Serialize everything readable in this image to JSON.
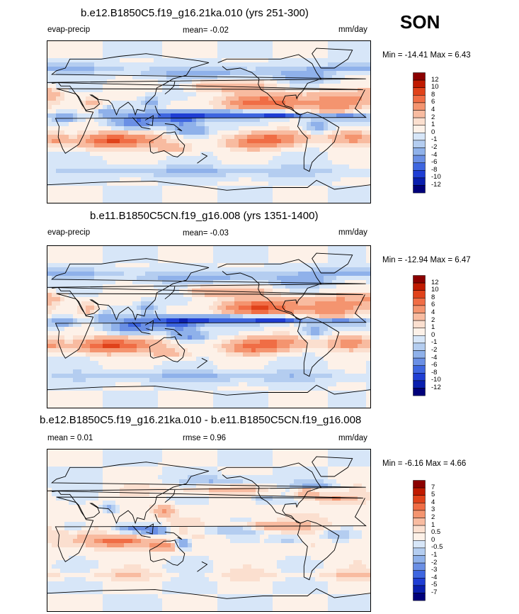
{
  "season": "SON",
  "chart_data": [
    {
      "type": "heatmap",
      "title": "b.e12.B1850C5.f19_g16.21ka.010 (yrs 251-300)",
      "variable": "evap-precip",
      "mean_label": "mean=  -0.02",
      "units": "mm/day",
      "minmax_label": "Min = -14.41 Max =   6.43",
      "min": -14.41,
      "max": 6.43,
      "mean": -0.02,
      "levels": [
        "12",
        "10",
        "8",
        "6",
        "4",
        "2",
        "1",
        "0",
        "-1",
        "-2",
        "-4",
        "-6",
        "-8",
        "-10",
        "-12"
      ],
      "colors": [
        "#8b0000",
        "#c01a00",
        "#e0421a",
        "#f06d45",
        "#f4946f",
        "#f8bba0",
        "#fbdfcf",
        "#fdf1e8",
        "#d7e6f8",
        "#b4cdf0",
        "#8fb1ea",
        "#6a8fe5",
        "#3e66e0",
        "#1f3ed4",
        "#0a1fae",
        "#00007a"
      ]
    },
    {
      "type": "heatmap",
      "title": "b.e11.B1850C5CN.f19_g16.008 (yrs 1351-1400)",
      "variable": "evap-precip",
      "mean_label": "mean=  -0.03",
      "units": "mm/day",
      "minmax_label": "Min = -12.94 Max =   6.47",
      "min": -12.94,
      "max": 6.47,
      "mean": -0.03,
      "levels": [
        "12",
        "10",
        "8",
        "6",
        "4",
        "2",
        "1",
        "0",
        "-1",
        "-2",
        "-4",
        "-6",
        "-8",
        "-10",
        "-12"
      ],
      "colors": [
        "#8b0000",
        "#c01a00",
        "#e0421a",
        "#f06d45",
        "#f4946f",
        "#f8bba0",
        "#fbdfcf",
        "#fdf1e8",
        "#d7e6f8",
        "#b4cdf0",
        "#8fb1ea",
        "#6a8fe5",
        "#3e66e0",
        "#1f3ed4",
        "#0a1fae",
        "#00007a"
      ]
    },
    {
      "type": "heatmap",
      "title": "b.e12.B1850C5.f19_g16.21ka.010 - b.e11.B1850C5CN.f19_g16.008",
      "mean_label": "mean =   0.01",
      "rmse_label": "rmse =   0.96",
      "units": "mm/day",
      "minmax_label": "Min =  -6.16 Max =   4.66",
      "min": -6.16,
      "max": 4.66,
      "mean": 0.01,
      "rmse": 0.96,
      "levels": [
        "7",
        "5",
        "4",
        "3",
        "2",
        "1",
        "0.5",
        "0",
        "-0.5",
        "-1",
        "-2",
        "-3",
        "-4",
        "-5",
        "-7"
      ],
      "colors": [
        "#8b0000",
        "#c01a00",
        "#e0421a",
        "#f06d45",
        "#f4946f",
        "#f8bba0",
        "#fbdfcf",
        "#fdf1e8",
        "#d7e6f8",
        "#b4cdf0",
        "#8fb1ea",
        "#6a8fe5",
        "#3e66e0",
        "#1f3ed4",
        "#0a1fae",
        "#00007a"
      ]
    }
  ]
}
